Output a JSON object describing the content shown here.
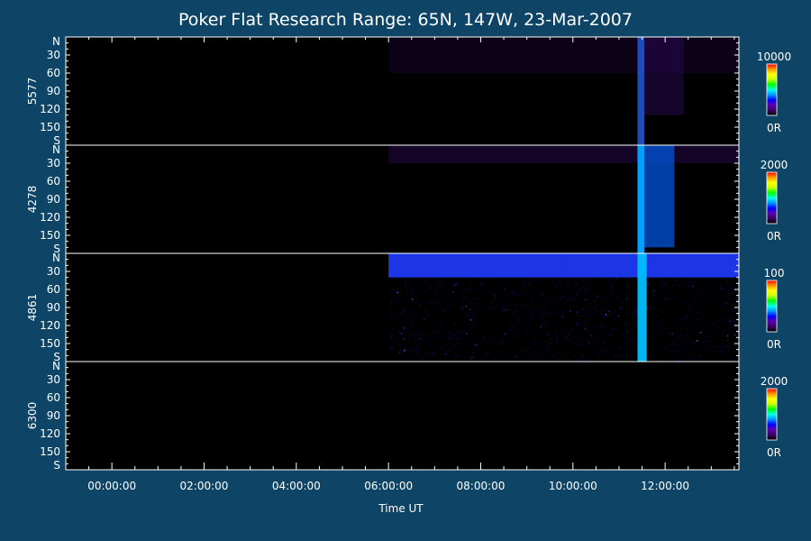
{
  "chart_data": {
    "type": "heatmap",
    "title": "Poker Flat Research Range: 65N, 147W, 23-Mar-2007",
    "xlabel": "Time UT",
    "x_ticks": [
      "00:00:00",
      "02:00:00",
      "04:00:00",
      "06:00:00",
      "08:00:00",
      "10:00:00",
      "12:00:00"
    ],
    "x_tick_hours": [
      0,
      2,
      4,
      6,
      8,
      10,
      12
    ],
    "x_range_hours": [
      -1.0,
      13.6
    ],
    "y_ticks": [
      "N",
      "30",
      "60",
      "90",
      "120",
      "150",
      "S"
    ],
    "y_tick_values": [
      0,
      30,
      60,
      90,
      120,
      150,
      180
    ],
    "y_range": [
      0,
      180
    ],
    "colormap": [
      "#000000",
      "#3a0060",
      "#5a00a8",
      "#0000ff",
      "#0096ff",
      "#00ffe6",
      "#00ff00",
      "#c8ff00",
      "#ffff00",
      "#ff9600",
      "#ff0000"
    ],
    "panels": [
      {
        "wavelength": "5577",
        "colorbar_max": "10000",
        "colorbar_min": "0R",
        "features": [
          {
            "kind": "diffuse",
            "t_start": 6.0,
            "t_end": 13.6,
            "lat_start": 0,
            "lat_end": 60,
            "level": 0.12,
            "color": "#1a0330"
          },
          {
            "kind": "arc",
            "t_start": 11.4,
            "t_end": 11.55,
            "lat_start": 0,
            "lat_end": 180,
            "level": 0.35,
            "color": "#2a6cff"
          },
          {
            "kind": "band",
            "t_start": 11.55,
            "t_end": 12.4,
            "lat_start": 0,
            "lat_end": 130,
            "level": 0.15,
            "color": "#2a0a55"
          }
        ]
      },
      {
        "wavelength": "4278",
        "colorbar_max": "2000",
        "colorbar_min": "0R",
        "features": [
          {
            "kind": "diffuse",
            "t_start": 6.0,
            "t_end": 13.6,
            "lat_start": 0,
            "lat_end": 30,
            "level": 0.12,
            "color": "#2a0a55"
          },
          {
            "kind": "arc",
            "t_start": 11.4,
            "t_end": 11.55,
            "lat_start": 0,
            "lat_end": 180,
            "level": 0.8,
            "color": "#00a0ff"
          },
          {
            "kind": "band",
            "t_start": 11.55,
            "t_end": 12.2,
            "lat_start": 0,
            "lat_end": 170,
            "level": 0.45,
            "color": "#0050d0"
          }
        ]
      },
      {
        "wavelength": "4861",
        "colorbar_max": "100",
        "colorbar_min": "0R",
        "features": [
          {
            "kind": "noise",
            "t_start": 6.0,
            "t_end": 13.6,
            "lat_start": 0,
            "lat_end": 180,
            "level": 0.3,
            "color": "#1a0050"
          },
          {
            "kind": "band",
            "t_start": 6.0,
            "t_end": 13.6,
            "lat_start": 0,
            "lat_end": 40,
            "level": 0.55,
            "color": "#1f3cff"
          },
          {
            "kind": "arc",
            "t_start": 11.4,
            "t_end": 11.6,
            "lat_start": 0,
            "lat_end": 180,
            "level": 0.6,
            "color": "#00c0ff"
          }
        ]
      },
      {
        "wavelength": "6300",
        "colorbar_max": "2000",
        "colorbar_min": "0R",
        "features": []
      }
    ]
  }
}
